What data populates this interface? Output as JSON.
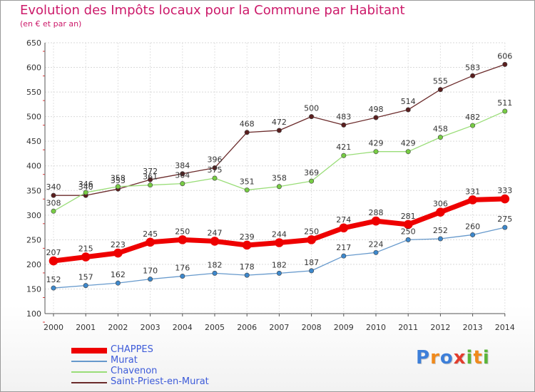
{
  "chart_data": {
    "type": "line",
    "title": "Evolution des Impôts locaux pour la Commune par Habitant",
    "subtitle": "(en € et par an)",
    "x": [
      "2000",
      "2001",
      "2002",
      "2003",
      "2004",
      "2005",
      "2006",
      "2007",
      "2008",
      "2009",
      "2010",
      "2011",
      "2012",
      "2013",
      "2014"
    ],
    "ylim": [
      100,
      650
    ],
    "yticks": [
      100,
      150,
      200,
      250,
      300,
      350,
      400,
      450,
      500,
      550,
      600,
      650
    ],
    "grid": true,
    "legend_position": "bottom-left",
    "series": [
      {
        "name": "CHAPPES",
        "color": "#ee0000",
        "marker_color": "#ee0000",
        "width": 7,
        "values": [
          207,
          215,
          223,
          245,
          250,
          247,
          239,
          244,
          250,
          274,
          288,
          281,
          306,
          331,
          333
        ]
      },
      {
        "name": "Murat",
        "color": "#6699cc",
        "marker_color": "#3d88cc",
        "width": 1.3,
        "values": [
          152,
          157,
          162,
          170,
          176,
          182,
          178,
          182,
          187,
          217,
          224,
          250,
          252,
          260,
          275
        ]
      },
      {
        "name": "Chavenon",
        "color": "#99dd77",
        "marker_color": "#77cc44",
        "width": 1.3,
        "values": [
          308,
          346,
          358,
          361,
          364,
          375,
          351,
          358,
          369,
          421,
          429,
          429,
          458,
          482,
          511
        ]
      },
      {
        "name": "Saint-Priest-en-Murat",
        "color": "#6b2b2b",
        "marker_color": "#5a1f1f",
        "width": 1.3,
        "values": [
          340,
          340,
          353,
          372,
          384,
          396,
          468,
          472,
          500,
          483,
          498,
          514,
          555,
          583,
          606
        ]
      }
    ]
  },
  "logo": {
    "letters": [
      "P",
      "r",
      "o",
      "x",
      "i",
      "t",
      "i"
    ],
    "colors": [
      "#3d7fd9",
      "#f08a1c",
      "#3d7fd9",
      "#e23d2d",
      "#5bb53a",
      "#f08a1c",
      "#5bb53a"
    ]
  }
}
